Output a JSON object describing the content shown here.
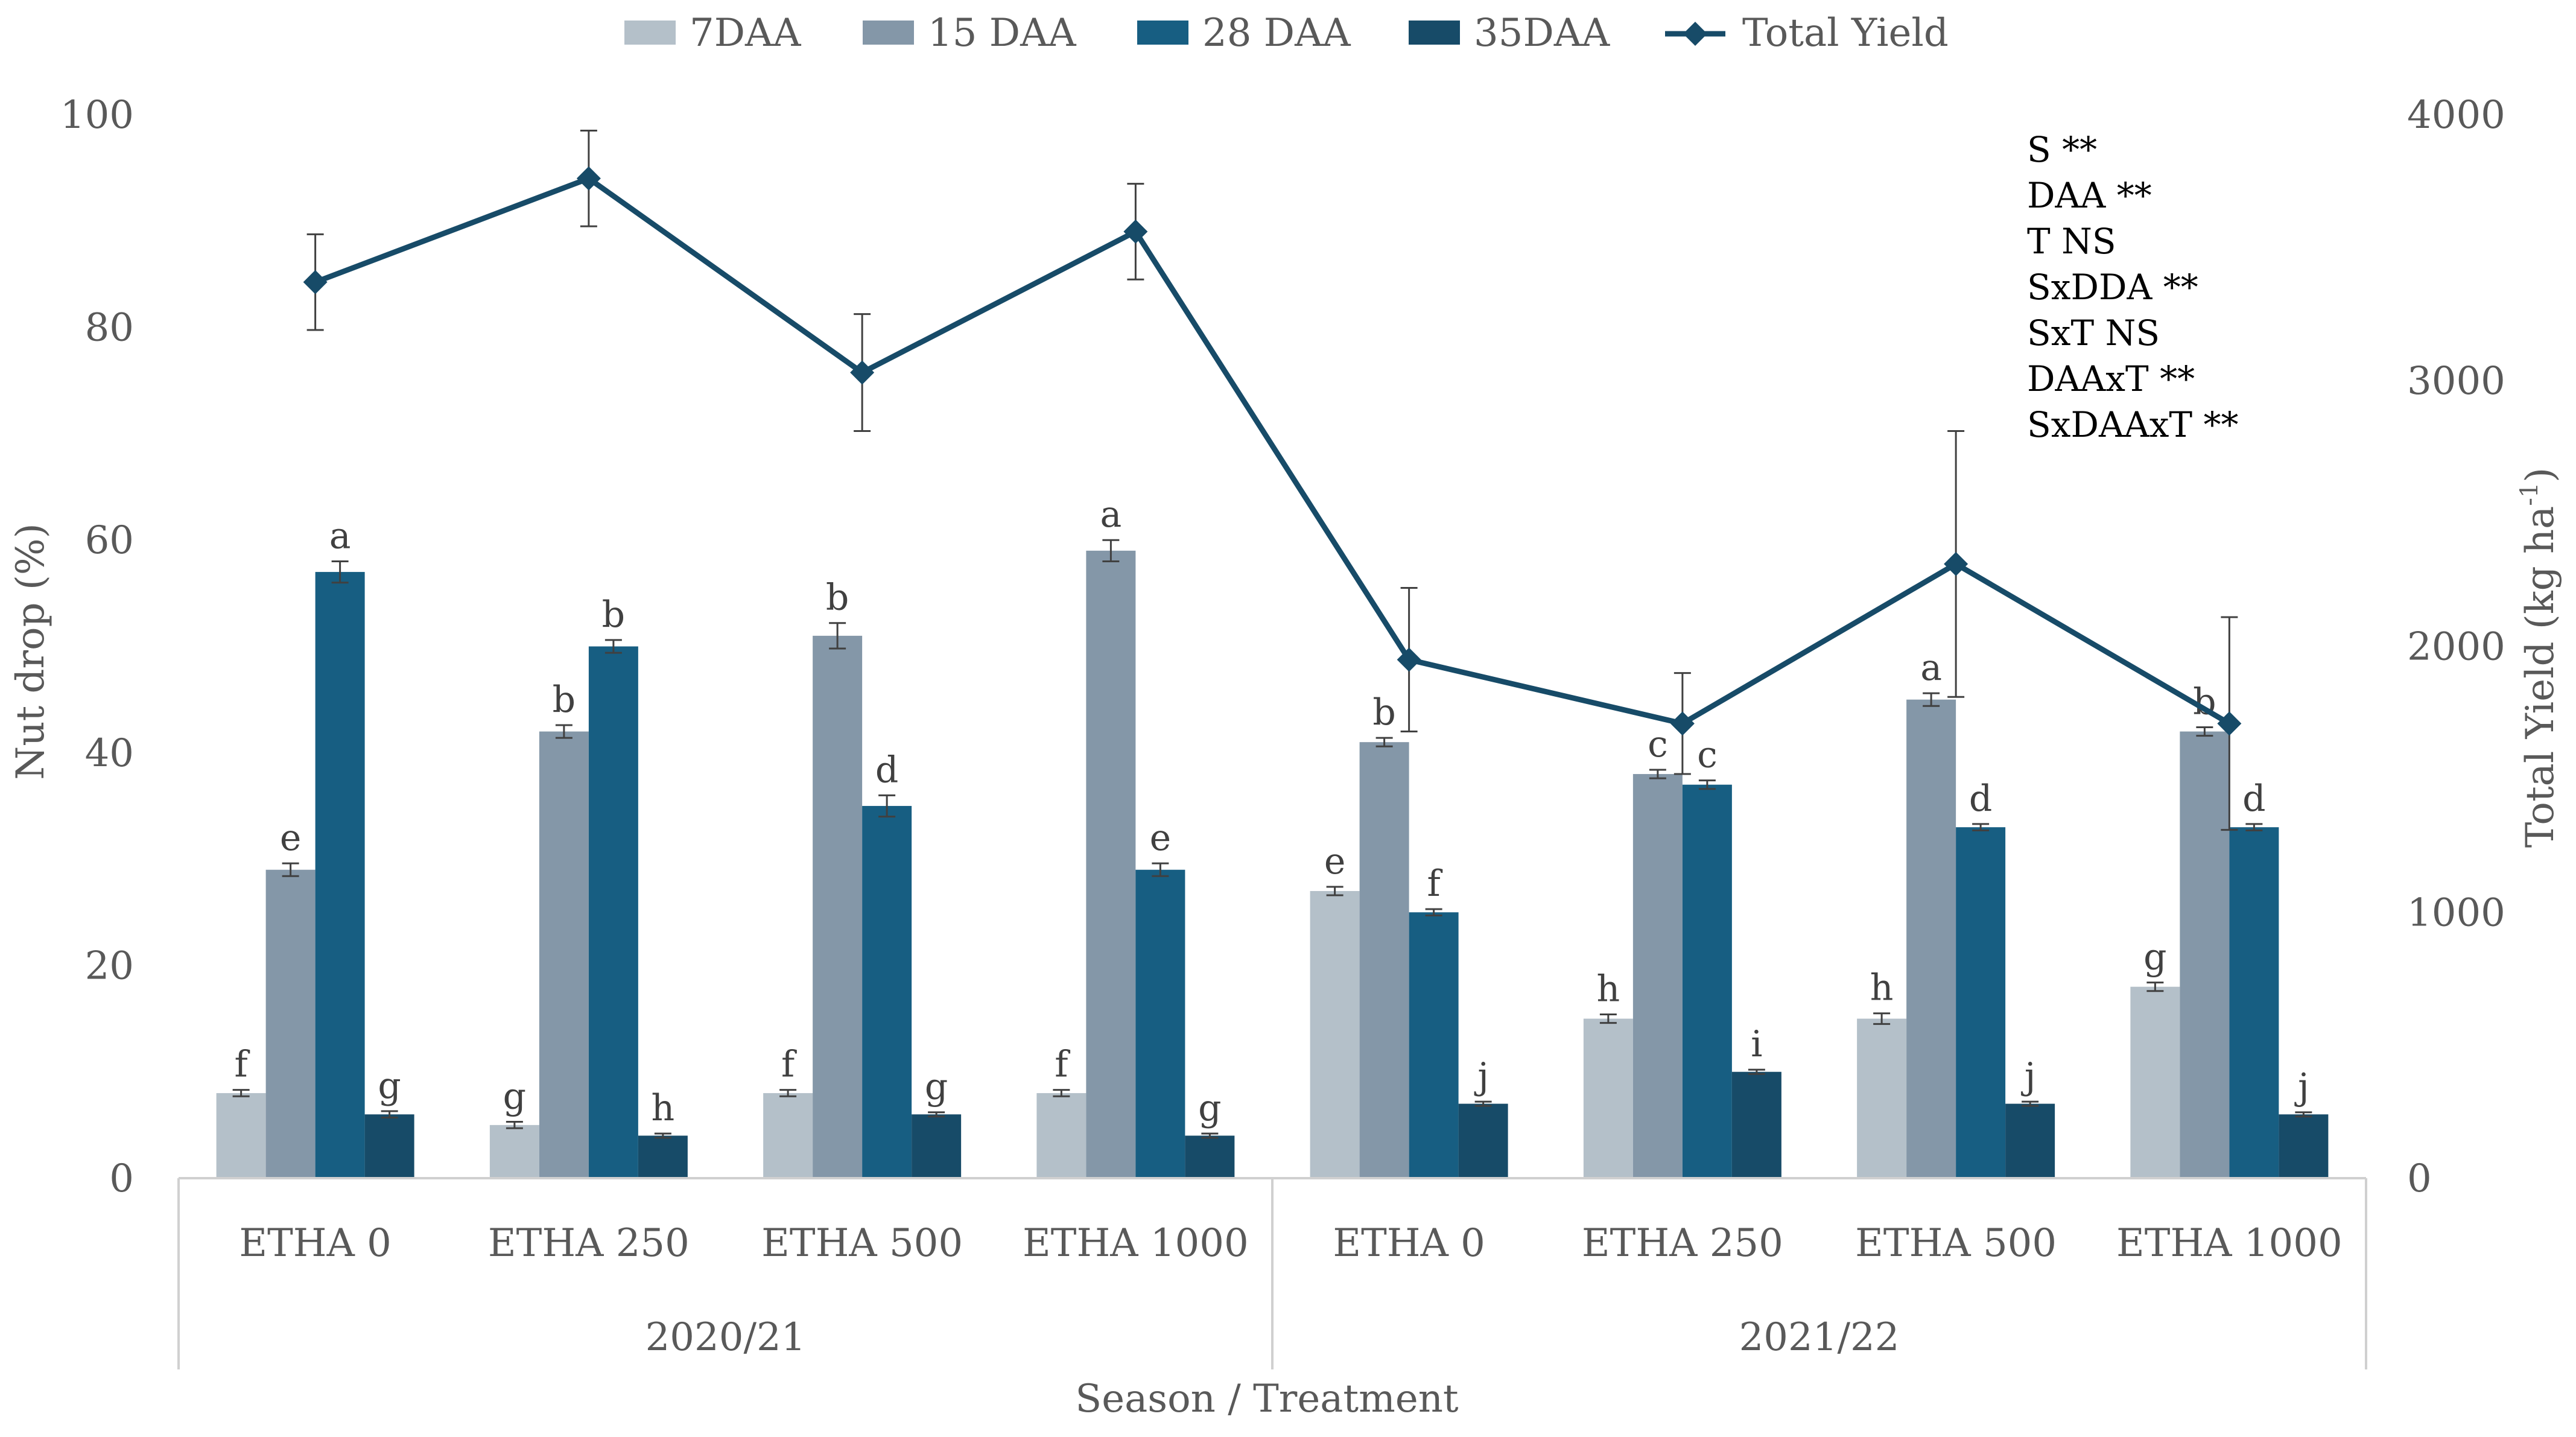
{
  "chart_data": {
    "type": "bar+line",
    "xlabel": "Season / Treatment",
    "ylabel_left": "Nut drop (%)",
    "ylabel_right": "Total Yield (kg ha",
    "ylabel_right_sup": "-1",
    "ylabel_right_close": ")",
    "ylim_left": [
      0,
      100
    ],
    "yticks_left": [
      "0",
      "20",
      "40",
      "60",
      "80",
      "100"
    ],
    "ylim_right": [
      0,
      4000
    ],
    "yticks_right": [
      "0",
      "1000",
      "2000",
      "3000",
      "4000"
    ],
    "grid": false,
    "legend_position": "top",
    "legend": [
      "7DAA",
      "15 DAA",
      "28 DAA",
      "35DAA",
      "Total Yield"
    ],
    "groups": [
      {
        "label": "2020/21",
        "categories": [
          "ETHA 0",
          "ETHA 250",
          "ETHA 500",
          "ETHA 1000"
        ]
      },
      {
        "label": "2021/22",
        "categories": [
          "ETHA 0",
          "ETHA 250",
          "ETHA 500",
          "ETHA 1000"
        ]
      }
    ],
    "series": [
      {
        "name": "7DAA",
        "color": "#b4c0c9",
        "values": [
          8,
          5,
          8,
          8,
          27,
          15,
          15,
          18
        ],
        "errors": [
          0.3,
          0.3,
          0.3,
          0.3,
          0.4,
          0.4,
          0.5,
          0.4
        ],
        "letters": [
          "f",
          "g",
          "f",
          "f",
          "e",
          "h",
          "h",
          "g"
        ]
      },
      {
        "name": "15 DAA",
        "color": "#8497a8",
        "values": [
          29,
          42,
          51,
          59,
          41,
          38,
          45,
          42
        ],
        "errors": [
          0.6,
          0.6,
          1.2,
          1.0,
          0.4,
          0.4,
          0.6,
          0.4
        ],
        "letters": [
          "e",
          "b",
          "b",
          "a",
          "b",
          "c",
          "a",
          "b"
        ]
      },
      {
        "name": "28 DAA",
        "color": "#175e82",
        "values": [
          57,
          50,
          35,
          29,
          25,
          37,
          33,
          33
        ],
        "errors": [
          1.0,
          0.6,
          1.0,
          0.6,
          0.3,
          0.4,
          0.3,
          0.3
        ],
        "letters": [
          "a",
          "b",
          "d",
          "e",
          "f",
          "c",
          "d",
          "d"
        ]
      },
      {
        "name": "35DAA",
        "color": "#174b68",
        "values": [
          6,
          4,
          6,
          4,
          7,
          10,
          7,
          6
        ],
        "errors": [
          0.3,
          0.2,
          0.2,
          0.2,
          0.2,
          0.2,
          0.2,
          0.2
        ],
        "letters": [
          "g",
          "h",
          "g",
          "g",
          "j",
          "i",
          "j",
          "j"
        ]
      }
    ],
    "line": {
      "name": "Total Yield",
      "color": "#174b68",
      "values": [
        3370,
        3760,
        3030,
        3560,
        1950,
        1710,
        2310,
        1710
      ],
      "errors": [
        180,
        180,
        220,
        180,
        270,
        190,
        500,
        400
      ]
    },
    "annotations": [
      "S **",
      "DAA **",
      "T NS",
      "SxDDA **",
      "SxT NS",
      "DAAxT **",
      "SxDAAxT **"
    ]
  }
}
